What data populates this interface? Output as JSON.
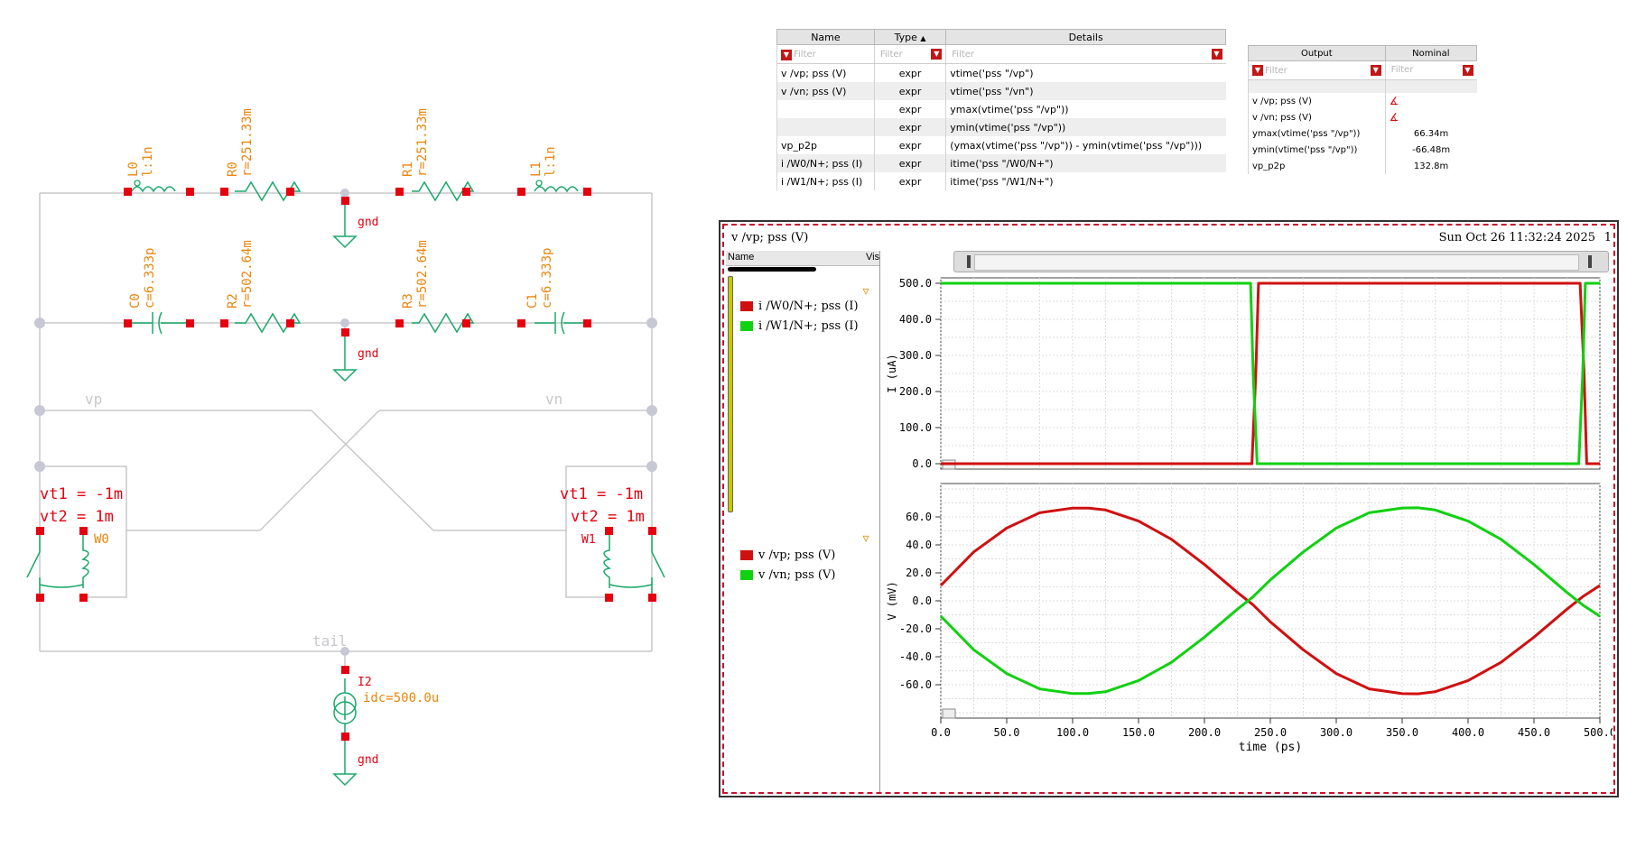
{
  "schematic": {
    "components": {
      "L0": {
        "name": "L0",
        "value": "l:1n"
      },
      "R0": {
        "name": "R0",
        "value": "r=251.33m"
      },
      "R1": {
        "name": "R1",
        "value": "r=251.33m"
      },
      "L1": {
        "name": "L1",
        "value": "l:1n"
      },
      "C0": {
        "name": "C0",
        "value": "c=6.333p"
      },
      "R2": {
        "name": "R2",
        "value": "r=502.64m"
      },
      "R3": {
        "name": "R3",
        "value": "r=502.64m"
      },
      "C1": {
        "name": "C1",
        "value": "c=6.333p"
      },
      "I2": {
        "name": "I2",
        "value": "idc=500.0u"
      }
    },
    "gnd_label": "gnd",
    "nets": {
      "vp": "vp",
      "vn": "vn",
      "tail": "tail"
    },
    "switches": {
      "W0": {
        "name": "W0",
        "vt1": "vt1 = -1m",
        "vt2": "vt2 = 1m"
      },
      "W1": {
        "name": "W1",
        "vt1": "vt1 = -1m",
        "vt2": "vt2 = 1m"
      }
    }
  },
  "outputs_table": {
    "headers": [
      "Name",
      "Type",
      "Details"
    ],
    "filter_placeholder": "Filter",
    "rows": [
      {
        "name": "v /vp; pss (V)",
        "type": "expr",
        "details": "vtime('pss \"/vp\")"
      },
      {
        "name": "v /vn; pss (V)",
        "type": "expr",
        "details": "vtime('pss \"/vn\")"
      },
      {
        "name": "",
        "type": "expr",
        "details": "ymax(vtime('pss \"/vp\"))"
      },
      {
        "name": "",
        "type": "expr",
        "details": "ymin(vtime('pss \"/vp\"))"
      },
      {
        "name": "vp_p2p",
        "type": "expr",
        "details": "(ymax(vtime('pss \"/vp\")) - ymin(vtime('pss \"/vp\")))"
      },
      {
        "name": "i /W0/N+; pss (I)",
        "type": "expr",
        "details": "itime('pss \"/W0/N+\")"
      },
      {
        "name": "i /W1/N+; pss (I)",
        "type": "expr",
        "details": "itime('pss \"/W1/N+\")"
      }
    ]
  },
  "results_table": {
    "headers": [
      "Output",
      "Nominal"
    ],
    "filter_placeholder": "Filter",
    "rows": [
      {
        "output": "v /vp; pss (V)",
        "nominal": ""
      },
      {
        "output": "v /vn; pss (V)",
        "nominal": ""
      },
      {
        "output": "ymax(vtime('pss \"/vp\"))",
        "nominal": "66.34m"
      },
      {
        "output": "ymin(vtime('pss \"/vp\"))",
        "nominal": "-66.48m"
      },
      {
        "output": "vp_p2p",
        "nominal": "132.8m"
      }
    ]
  },
  "waveform": {
    "title": "v /vp; pss (V)",
    "timestamp": "Sun Oct 26 11:32:24 2025",
    "corner_label": "1",
    "legend_header": {
      "name": "Name",
      "vis": "Vis"
    },
    "colors": {
      "red": "#d01010",
      "green": "#12d012"
    }
  },
  "chart_data": [
    {
      "type": "line",
      "title": "",
      "xlabel": "time (ps)",
      "ylabel": "I (uA)",
      "xlim": [
        0,
        500
      ],
      "ylim": [
        0,
        500
      ],
      "yticks": [
        "0.0",
        "100.0",
        "200.0",
        "300.0",
        "400.0",
        "500.0"
      ],
      "grid": true,
      "series": [
        {
          "name": "i /W0/N+; pss (I)",
          "color": "#d01010",
          "x": [
            0,
            236,
            239,
            241,
            485,
            488,
            490,
            500
          ],
          "y": [
            0,
            0,
            250,
            500,
            500,
            250,
            0,
            0
          ]
        },
        {
          "name": "i /W1/N+; pss (I)",
          "color": "#12d012",
          "x": [
            0,
            235,
            237,
            240,
            484,
            487,
            489,
            500
          ],
          "y": [
            500,
            500,
            250,
            0,
            0,
            250,
            500,
            500
          ]
        }
      ]
    },
    {
      "type": "line",
      "title": "",
      "xlabel": "time (ps)",
      "ylabel": "V (mV)",
      "xlim": [
        0,
        500
      ],
      "ylim": [
        -80,
        80
      ],
      "xticks": [
        "0.0",
        "50.0",
        "100.0",
        "150.0",
        "200.0",
        "250.0",
        "300.0",
        "350.0",
        "400.0",
        "450.0",
        "500.0"
      ],
      "yticks": [
        "-60.0",
        "-40.0",
        "-20.0",
        "0.0",
        "20.0",
        "40.0",
        "60.0"
      ],
      "grid": true,
      "series": [
        {
          "name": "v /vp; pss (V)",
          "color": "#d01010",
          "x": [
            0,
            25,
            50,
            75,
            100,
            112,
            125,
            150,
            175,
            200,
            225,
            237,
            250,
            275,
            300,
            325,
            350,
            362,
            375,
            400,
            425,
            450,
            475,
            487,
            500
          ],
          "y": [
            11,
            35,
            52,
            63,
            66.3,
            66.3,
            65,
            57,
            44,
            26,
            6,
            -3,
            -15,
            -35,
            -52,
            -63,
            -66.4,
            -66.5,
            -65,
            -57,
            -44,
            -26,
            -6,
            3,
            11
          ]
        },
        {
          "name": "v /vn; pss (V)",
          "color": "#12d012",
          "x": [
            0,
            25,
            50,
            75,
            100,
            112,
            125,
            150,
            175,
            200,
            225,
            237,
            250,
            275,
            300,
            325,
            350,
            362,
            375,
            400,
            425,
            450,
            475,
            487,
            500
          ],
          "y": [
            -11,
            -35,
            -52,
            -63,
            -66.3,
            -66.3,
            -65,
            -57,
            -44,
            -26,
            -6,
            3,
            15,
            35,
            52,
            63,
            66.4,
            66.5,
            65,
            57,
            44,
            26,
            6,
            -3,
            -11
          ]
        }
      ]
    }
  ]
}
